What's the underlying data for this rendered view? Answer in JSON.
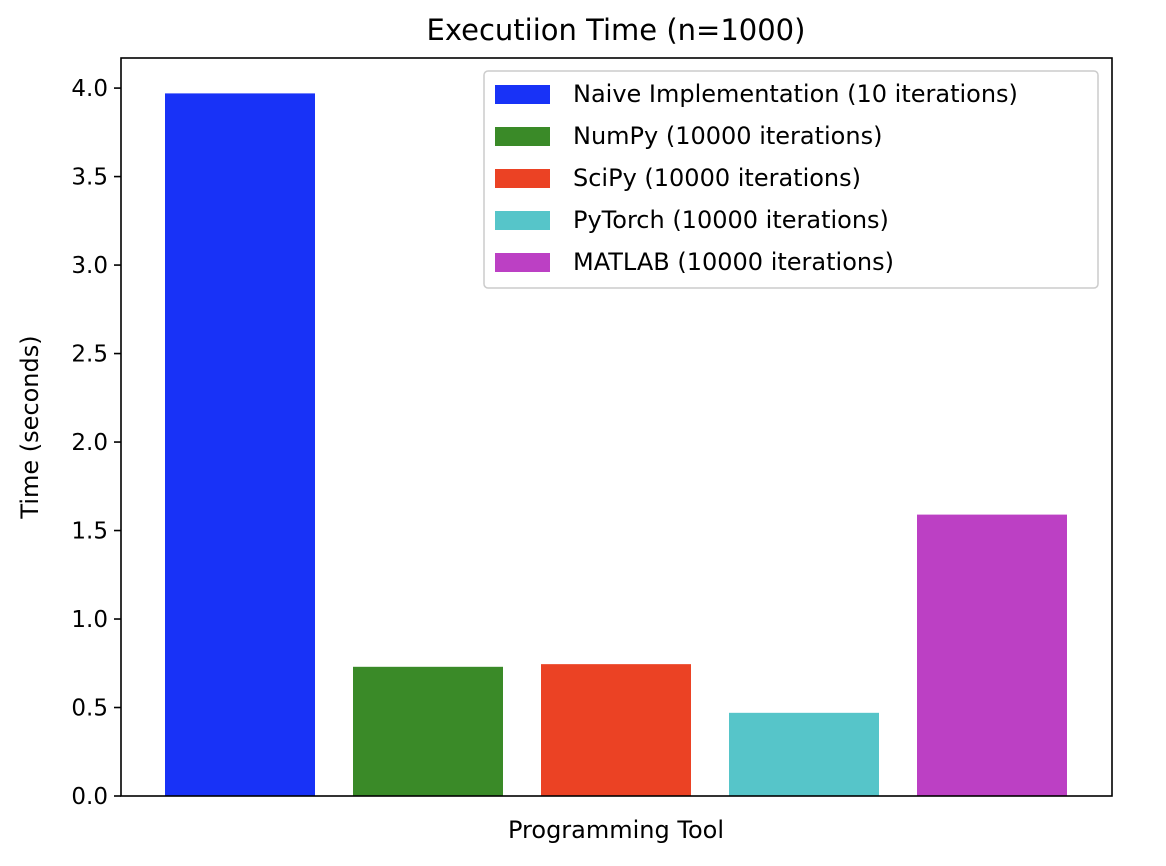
{
  "chart_data": {
    "type": "bar",
    "title": "Executiion Time (n=1000)",
    "xlabel": "Programming Tool",
    "ylabel": "Time (seconds)",
    "ylim": [
      0,
      4.17
    ],
    "yticks": [
      "0.0",
      "0.5",
      "1.0",
      "1.5",
      "2.0",
      "2.5",
      "3.0",
      "3.5",
      "4.0"
    ],
    "grid": false,
    "legend_position": "top-right",
    "series": [
      {
        "name": "Naive Implementation (10 iterations)",
        "value": 3.97,
        "color": "#1832f7"
      },
      {
        "name": "NumPy (10000 iterations)",
        "value": 0.73,
        "color": "#3a8a28"
      },
      {
        "name": "SciPy (10000 iterations)",
        "value": 0.745,
        "color": "#eb4224"
      },
      {
        "name": "PyTorch (10000 iterations)",
        "value": 0.47,
        "color": "#56c5c9"
      },
      {
        "name": "MATLAB (10000 iterations)",
        "value": 1.59,
        "color": "#bc40c4"
      }
    ]
  }
}
